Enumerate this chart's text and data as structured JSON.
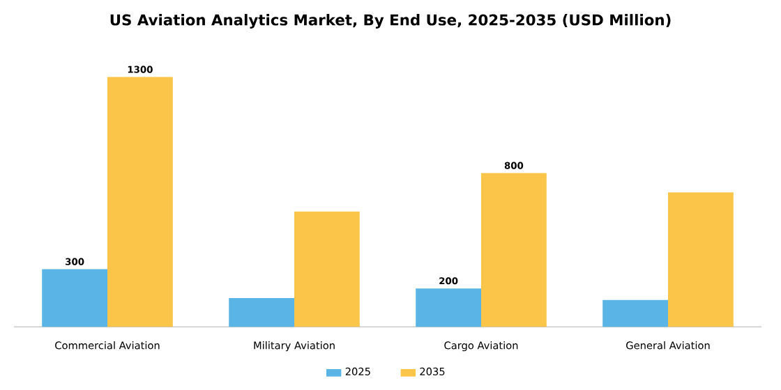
{
  "chart_data": {
    "type": "bar",
    "title": "US Aviation Analytics Market, By End Use, 2025-2035 (USD Million)",
    "categories": [
      "Commercial Aviation",
      "Military Aviation",
      "Cargo Aviation",
      "General Aviation"
    ],
    "series": [
      {
        "name": "2025",
        "color": "#5ab4e5",
        "values": [
          300,
          150,
          200,
          140
        ],
        "value_labels": [
          "300",
          null,
          "200",
          null
        ]
      },
      {
        "name": "2035",
        "color": "#fbc54a",
        "values": [
          1300,
          600,
          800,
          700
        ],
        "value_labels": [
          "1300",
          null,
          "800",
          null
        ]
      }
    ],
    "legend": "bottom"
  }
}
